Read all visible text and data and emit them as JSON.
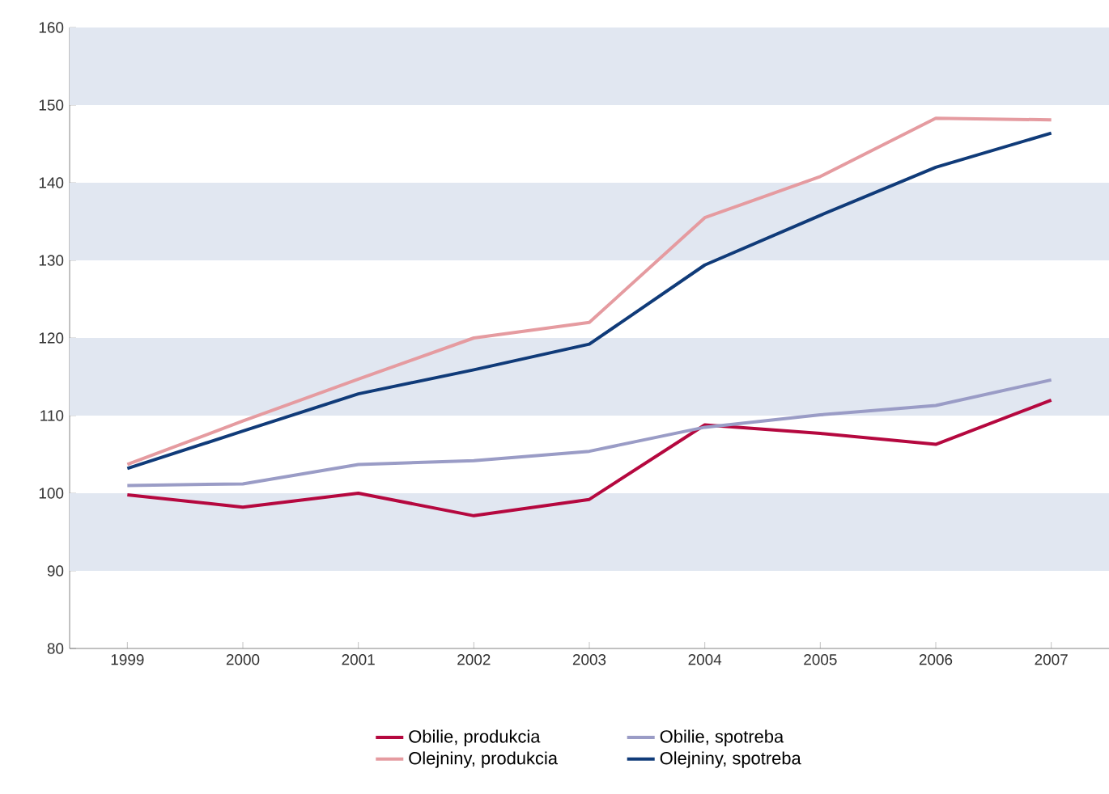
{
  "chart_data": {
    "type": "line",
    "categories": [
      "1999",
      "2000",
      "2001",
      "2002",
      "2003",
      "2004",
      "2005",
      "2006",
      "2007"
    ],
    "ylim": [
      80,
      160
    ],
    "yticks": [
      80,
      90,
      100,
      110,
      120,
      130,
      140,
      150,
      160
    ],
    "series": [
      {
        "name": "Obilie, produkcia",
        "color": "#b5083f",
        "values": [
          99.8,
          98.2,
          100,
          97.1,
          99.2,
          108.8,
          107.7,
          106.3,
          112
        ]
      },
      {
        "name": "Obilie, spotreba",
        "color": "#9a9cc6",
        "values": [
          101,
          101.2,
          103.7,
          104.2,
          105.4,
          108.5,
          110.1,
          111.3,
          114.6
        ]
      },
      {
        "name": "Olejniny, produkcia",
        "color": "#e59ba0",
        "values": [
          103.7,
          109.3,
          114.7,
          120,
          122,
          135.5,
          140.8,
          148.3,
          148.1
        ]
      },
      {
        "name": "Olejniny, spotreba",
        "color": "#103b79",
        "values": [
          103.2,
          108,
          112.8,
          115.9,
          119.2,
          129.4,
          135.8,
          142,
          146.4
        ]
      }
    ],
    "bands": [
      {
        "axis": "y",
        "from": 90,
        "to": 100,
        "color": "#e1e7f1"
      },
      {
        "axis": "y",
        "from": 110,
        "to": 120,
        "color": "#e1e7f1"
      },
      {
        "axis": "y",
        "from": 130,
        "to": 140,
        "color": "#e1e7f1"
      },
      {
        "axis": "y",
        "from": 150,
        "to": 160,
        "color": "#e1e7f1"
      }
    ],
    "legend": "bottom",
    "marker": "none",
    "line_style": "solid",
    "grid": false
  }
}
